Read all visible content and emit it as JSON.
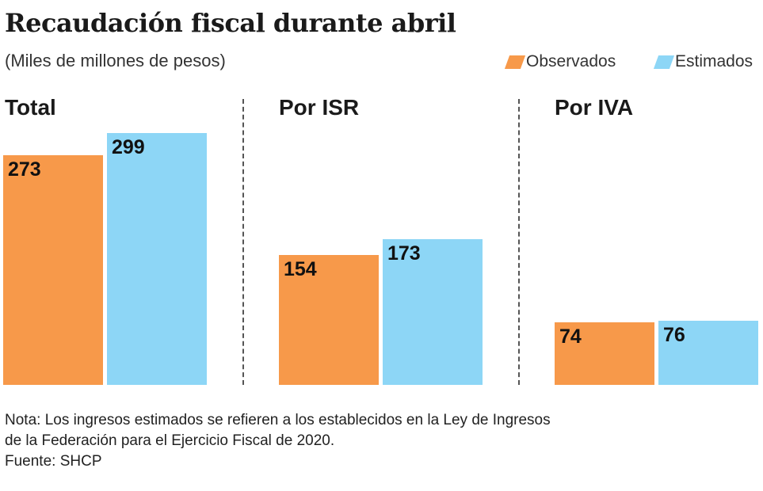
{
  "chart_data": {
    "type": "bar",
    "title": "Recaudación fiscal durante abril",
    "subtitle": "(Miles de millones de pesos)",
    "legend": [
      {
        "name": "Observados",
        "color": "#F7994A"
      },
      {
        "name": "Estimados",
        "color": "#8DD6F6"
      }
    ],
    "legend_position": "top-right",
    "panels": [
      {
        "title": "Total",
        "values": [
          273,
          299
        ]
      },
      {
        "title": "Por ISR",
        "values": [
          154,
          173
        ]
      },
      {
        "title": "Por IVA",
        "values": [
          74,
          76
        ]
      }
    ],
    "ylim": [
      0,
      299
    ]
  },
  "note": [
    "Nota: Los ingresos estimados se refieren a los establecidos en la Ley de Ingresos",
    "de la Federación para el Ejercicio Fiscal de 2020.",
    "Fuente: SHCP"
  ]
}
